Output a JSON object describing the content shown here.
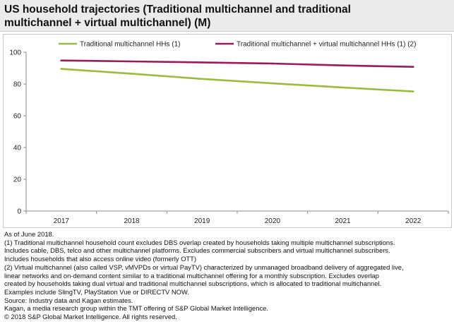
{
  "title_lines": [
    "US household trajectories (Traditional multichannel and traditional",
    "multichannel + virtual multichannel) (M)"
  ],
  "chart_data": {
    "type": "line",
    "categories": [
      "2017",
      "2018",
      "2019",
      "2020",
      "2021",
      "2022"
    ],
    "series": [
      {
        "name": "Traditional multichannel HHs (1)",
        "color": "#9bbb3b",
        "values": [
          89.5,
          86.5,
          83.2,
          80.4,
          77.8,
          75.3
        ]
      },
      {
        "name": "Traditional multichannel + virtual multichannel HHs (1) (2)",
        "color": "#a0185c",
        "values": [
          94.8,
          94.2,
          93.6,
          92.9,
          91.7,
          90.8
        ]
      }
    ],
    "ylim": [
      0,
      100
    ],
    "yticks": [
      0,
      20,
      40,
      60,
      80,
      100
    ],
    "ytick_labels": [
      "0",
      "20",
      "40",
      "60",
      "80",
      "100"
    ],
    "grid": false,
    "legend": "top",
    "xlabel": "",
    "ylabel": ""
  },
  "footnotes": [
    "As of June 2018.",
    "(1) Traditional multichannel household count excludes DBS overlap created by households taking multiple multichannel subscriptions.",
    "Includes cable, DBS, telco and other multichannel platforms. Excludes commercial subscribers and virtual multichannel subscribers.",
    "Includes households that also access online video (formerly OTT)",
    "(2) Virtual multichannel (also called VSP, vMVPDs or virtual PayTV) characterized by unmanaged broadband delivery of aggregated live,",
    "linear networks and on-demand content similar to a traditional multichannel offering for a monthly subscription. Excludes overlap",
    "created by households taking dual virtual and traditional multichannel subscriptions, which is allocated to traditional multichannel.",
    "Examples include SlingTV, PlayStation Vue or DIRECTV NOW.",
    "Source: Industry data and Kagan estimates.",
    "Kagan, a media research group within the TMT offering of S&P Global Market Intelligence.",
    "© 2018 S&P Global Market Intelligence. All rights reserved."
  ]
}
